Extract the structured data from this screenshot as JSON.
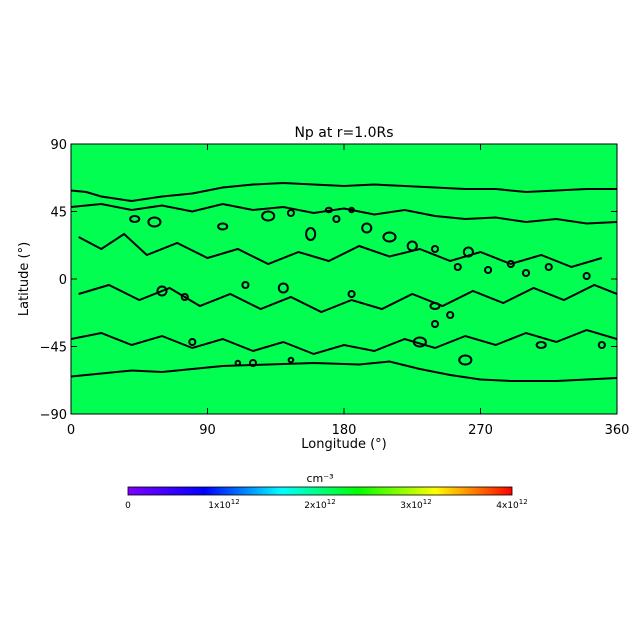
{
  "chart_data": {
    "type": "heatmap",
    "title": "Np at r=1.0Rs",
    "xlabel": "Longitude (°)",
    "ylabel": "Latitude (°)",
    "xlim": [
      0,
      360
    ],
    "ylim": [
      -90,
      90
    ],
    "xticks": [
      "0",
      "90",
      "180",
      "270",
      "360"
    ],
    "xtick_values": [
      0,
      90,
      180,
      270,
      360
    ],
    "yticks": [
      "−90",
      "−45",
      "0",
      "45",
      "90"
    ],
    "ytick_values": [
      -90,
      -45,
      0,
      45,
      90
    ],
    "field_fill_color": "#00ff50",
    "contour_color": "#000000",
    "contours": {
      "northern_boundary": [
        [
          0,
          59
        ],
        [
          10,
          58
        ],
        [
          20,
          55
        ],
        [
          40,
          52
        ],
        [
          60,
          55
        ],
        [
          80,
          57
        ],
        [
          100,
          61
        ],
        [
          120,
          63
        ],
        [
          140,
          64
        ],
        [
          160,
          63
        ],
        [
          180,
          62
        ],
        [
          200,
          63
        ],
        [
          220,
          62
        ],
        [
          240,
          61
        ],
        [
          260,
          60
        ],
        [
          280,
          60
        ],
        [
          300,
          58
        ],
        [
          320,
          59
        ],
        [
          340,
          60
        ],
        [
          360,
          60
        ]
      ],
      "southern_boundary": [
        [
          0,
          -65
        ],
        [
          20,
          -63
        ],
        [
          40,
          -61
        ],
        [
          60,
          -62
        ],
        [
          80,
          -60
        ],
        [
          100,
          -58
        ],
        [
          130,
          -57
        ],
        [
          160,
          -56
        ],
        [
          190,
          -57
        ],
        [
          210,
          -55
        ],
        [
          230,
          -60
        ],
        [
          250,
          -64
        ],
        [
          270,
          -67
        ],
        [
          290,
          -68
        ],
        [
          320,
          -68
        ],
        [
          340,
          -67
        ],
        [
          360,
          -66
        ]
      ],
      "north_band": [
        [
          0,
          48
        ],
        [
          20,
          50
        ],
        [
          40,
          46
        ],
        [
          60,
          49
        ],
        [
          80,
          45
        ],
        [
          100,
          50
        ],
        [
          120,
          46
        ],
        [
          140,
          48
        ],
        [
          160,
          44
        ],
        [
          180,
          47
        ],
        [
          200,
          43
        ],
        [
          220,
          46
        ],
        [
          240,
          42
        ],
        [
          260,
          40
        ],
        [
          280,
          41
        ],
        [
          300,
          38
        ],
        [
          320,
          40
        ],
        [
          340,
          37
        ],
        [
          360,
          38
        ]
      ],
      "mid_upper": [
        [
          5,
          28
        ],
        [
          20,
          20
        ],
        [
          35,
          30
        ],
        [
          50,
          16
        ],
        [
          70,
          24
        ],
        [
          90,
          14
        ],
        [
          110,
          20
        ],
        [
          130,
          10
        ],
        [
          150,
          18
        ],
        [
          170,
          12
        ],
        [
          190,
          22
        ],
        [
          210,
          15
        ],
        [
          230,
          20
        ],
        [
          250,
          12
        ],
        [
          270,
          18
        ],
        [
          290,
          10
        ],
        [
          310,
          16
        ],
        [
          330,
          8
        ],
        [
          350,
          14
        ]
      ],
      "mid_lower": [
        [
          5,
          -10
        ],
        [
          25,
          -4
        ],
        [
          45,
          -14
        ],
        [
          65,
          -6
        ],
        [
          85,
          -18
        ],
        [
          105,
          -10
        ],
        [
          125,
          -20
        ],
        [
          145,
          -12
        ],
        [
          165,
          -22
        ],
        [
          185,
          -14
        ],
        [
          205,
          -20
        ],
        [
          225,
          -10
        ],
        [
          245,
          -18
        ],
        [
          265,
          -8
        ],
        [
          285,
          -16
        ],
        [
          305,
          -6
        ],
        [
          325,
          -14
        ],
        [
          345,
          -4
        ],
        [
          360,
          -10
        ]
      ],
      "south_band": [
        [
          0,
          -40
        ],
        [
          20,
          -36
        ],
        [
          40,
          -44
        ],
        [
          60,
          -38
        ],
        [
          80,
          -46
        ],
        [
          100,
          -40
        ],
        [
          120,
          -48
        ],
        [
          140,
          -42
        ],
        [
          160,
          -50
        ],
        [
          180,
          -44
        ],
        [
          200,
          -48
        ],
        [
          220,
          -40
        ],
        [
          240,
          -46
        ],
        [
          260,
          -38
        ],
        [
          280,
          -44
        ],
        [
          300,
          -36
        ],
        [
          320,
          -42
        ],
        [
          340,
          -34
        ],
        [
          360,
          -40
        ]
      ]
    },
    "islands": [
      [
        42,
        40,
        3,
        2
      ],
      [
        55,
        38,
        4,
        3
      ],
      [
        100,
        35,
        3,
        2
      ],
      [
        130,
        42,
        4,
        3
      ],
      [
        145,
        44,
        2,
        2
      ],
      [
        158,
        30,
        3,
        4
      ],
      [
        170,
        46,
        2,
        1.5
      ],
      [
        175,
        40,
        2,
        2
      ],
      [
        185,
        46,
        1.5,
        1.5
      ],
      [
        195,
        34,
        3,
        3
      ],
      [
        210,
        28,
        4,
        3
      ],
      [
        225,
        22,
        3,
        3
      ],
      [
        240,
        20,
        2,
        2
      ],
      [
        255,
        8,
        2,
        2
      ],
      [
        262,
        18,
        3,
        3
      ],
      [
        275,
        6,
        2,
        2
      ],
      [
        290,
        10,
        2,
        2
      ],
      [
        300,
        4,
        2,
        2
      ],
      [
        315,
        8,
        2,
        2
      ],
      [
        340,
        2,
        2,
        2
      ],
      [
        60,
        -8,
        3,
        3
      ],
      [
        75,
        -12,
        2,
        2
      ],
      [
        115,
        -4,
        2,
        2
      ],
      [
        140,
        -6,
        3,
        3
      ],
      [
        185,
        -10,
        2,
        2
      ],
      [
        240,
        -18,
        3,
        2
      ],
      [
        250,
        -24,
        2,
        2
      ],
      [
        80,
        -42,
        2,
        2
      ],
      [
        110,
        -56,
        1.5,
        1.5
      ],
      [
        145,
        -54,
        1.5,
        1.5
      ],
      [
        230,
        -42,
        4,
        3
      ],
      [
        260,
        -54,
        4,
        3
      ],
      [
        310,
        -44,
        3,
        2
      ],
      [
        350,
        -44,
        2,
        2
      ],
      [
        120,
        -56,
        2,
        2
      ],
      [
        240,
        -30,
        2,
        2
      ]
    ],
    "colorbar": {
      "label": "cm⁻³",
      "range": [
        0,
        4000000000000
      ],
      "tick_values": [
        0,
        1000000000000,
        2000000000000,
        3000000000000,
        4000000000000
      ],
      "tick_labels": [
        {
          "mantissa": "0",
          "times": "",
          "exp": ""
        },
        {
          "mantissa": "1",
          "times": "x10",
          "exp": "12"
        },
        {
          "mantissa": "2",
          "times": "x10",
          "exp": "12"
        },
        {
          "mantissa": "3",
          "times": "x10",
          "exp": "12"
        },
        {
          "mantissa": "4",
          "times": "x10",
          "exp": "12"
        }
      ],
      "colormap": [
        "#7f00ff",
        "#0000ff",
        "#00ffff",
        "#00ff00",
        "#ffff00",
        "#ff0000"
      ]
    }
  }
}
